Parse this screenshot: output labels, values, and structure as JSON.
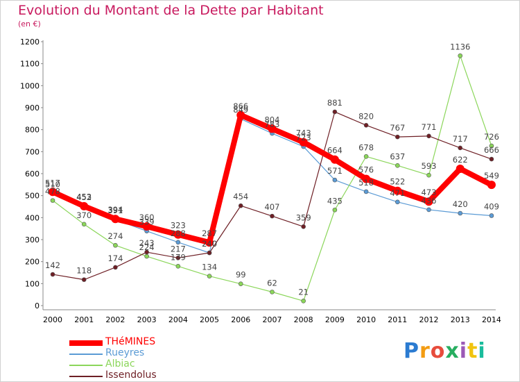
{
  "chart_data": {
    "type": "line",
    "title": "Evolution du Montant de la Dette par Habitant",
    "unit_label": "(en €)",
    "xlabel": "",
    "ylabel": "",
    "x": [
      "2000",
      "2001",
      "2002",
      "2003",
      "2004",
      "2005",
      "2006",
      "2007",
      "2008",
      "2009",
      "2010",
      "2011",
      "2012",
      "2013",
      "2014"
    ],
    "ylim": [
      0,
      1200
    ],
    "yticks": [
      0,
      100,
      200,
      300,
      400,
      500,
      600,
      700,
      800,
      900,
      1000,
      1100,
      1200
    ],
    "grid": false,
    "legend_position": "bottom-left",
    "series": [
      {
        "name": "THéMINES",
        "color": "#ff0000",
        "values": [
          517,
          452,
          394,
          360,
          323,
          287,
          866,
          804,
          743,
          664,
          576,
          522,
          473,
          622,
          549
        ],
        "labels": [
          "517",
          "452",
          "394",
          "360",
          "323",
          "287",
          "866",
          "804",
          "743",
          "664",
          "576",
          "522",
          "473",
          "622",
          "549"
        ]
      },
      {
        "name": "Rueyres",
        "color": "#5b9bd5",
        "values": [
          510,
          453,
          391,
          339,
          288,
          240,
          849,
          783,
          723,
          571,
          518,
          471,
          436,
          420,
          409
        ],
        "labels": [
          "510",
          "453",
          "391",
          "339",
          "288",
          "240",
          "849",
          "783",
          "723",
          "571",
          "518",
          "471",
          "436",
          "420",
          "409"
        ]
      },
      {
        "name": "Albiac",
        "color": "#8bd65a",
        "values": [
          478,
          370,
          274,
          224,
          179,
          134,
          99,
          62,
          21,
          435,
          678,
          637,
          593,
          1136,
          726
        ],
        "labels": [
          "478",
          "370",
          "274",
          "224",
          "179",
          "134",
          "99",
          "62",
          "21",
          "435",
          "678",
          "637",
          "593",
          "1136",
          "726"
        ]
      },
      {
        "name": "Issendolus",
        "color": "#6e1f25",
        "values": [
          142,
          118,
          174,
          243,
          217,
          240,
          454,
          407,
          359,
          881,
          820,
          767,
          771,
          717,
          666
        ],
        "labels": [
          "142",
          "118",
          "174",
          "243",
          "217",
          "240",
          "454",
          "407",
          "359",
          "881",
          "820",
          "767",
          "771",
          "717",
          "666"
        ]
      }
    ]
  },
  "logo": {
    "text": "Proxiti"
  }
}
